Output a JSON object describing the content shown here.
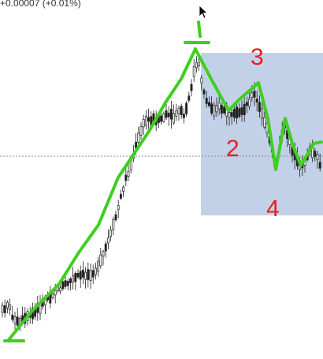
{
  "header": {
    "price_change": "+0.00007 (+0.01%)"
  },
  "annotations": {
    "label_3": "3",
    "label_2": "2",
    "label_4": "4"
  },
  "colors": {
    "overlay_line": "#3fcf1e",
    "zone_fill": "#b7c9e3",
    "candle": "#202020",
    "labels": "#e81c1c",
    "hline": "#888888"
  },
  "chart_data": {
    "type": "candlestick",
    "x": [],
    "highlight_zone": true,
    "horizontal_dotted_line": true,
    "overlay_path_points": 17
  }
}
